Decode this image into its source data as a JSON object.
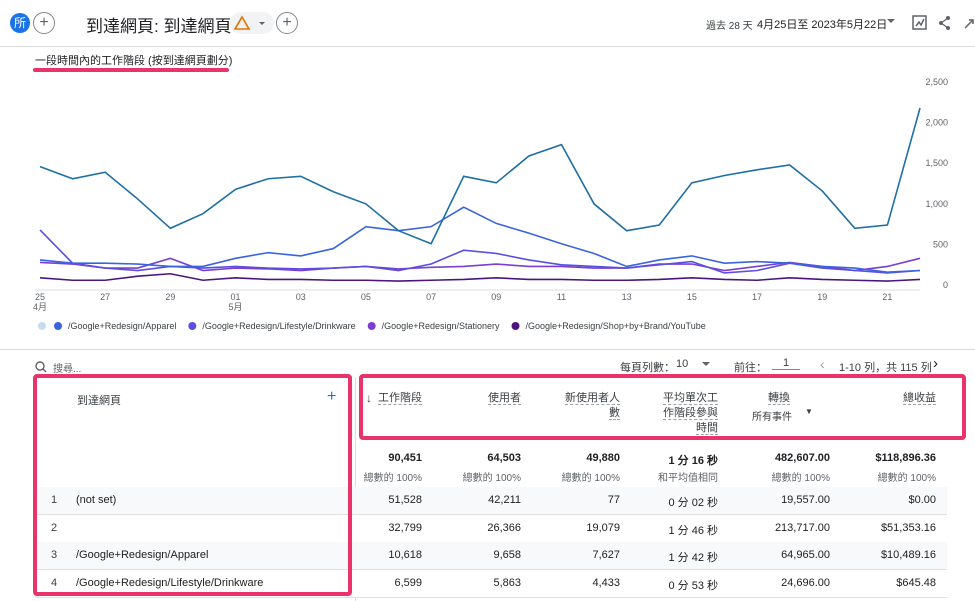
{
  "header": {
    "avatar": "所",
    "title": "到達網頁: 到達網頁",
    "date_range_label": "過去 28 天",
    "date_range": "4月25日至 2023年5月22日"
  },
  "chart": {
    "type": "line",
    "title": "一段時間內的工作階段 (按到達網頁劃分)",
    "categories": [
      "25",
      null,
      "27",
      null,
      "29",
      null,
      "01",
      null,
      "03",
      null,
      "05",
      null,
      "07",
      null,
      "09",
      null,
      "11",
      null,
      "13",
      null,
      "15",
      null,
      "17",
      null,
      "19",
      null,
      "21",
      null
    ],
    "month_labels": [
      "4月",
      null,
      null,
      null,
      null,
      null,
      "5月",
      null,
      null,
      null,
      null,
      null,
      null,
      null,
      null,
      null,
      null,
      null,
      null,
      null,
      null,
      null,
      null,
      null,
      null,
      null,
      null,
      null
    ],
    "ylim": [
      0,
      2500
    ],
    "yticks": [
      0,
      500,
      {
        "value": 1000,
        "label": "1,000"
      },
      {
        "value": 1500,
        "label": "1,500"
      },
      {
        "value": 2000,
        "label": "2,000"
      },
      {
        "value": 2500,
        "label": "2,500"
      }
    ],
    "grid": false,
    "series": [
      {
        "name": null,
        "color": "#1d6fa5",
        "values": [
          1520,
          1370,
          1450,
          1120,
          760,
          940,
          1240,
          1370,
          1400,
          1210,
          1060,
          730,
          570,
          1400,
          1320,
          1650,
          1790,
          1060,
          730,
          800,
          1320,
          1410,
          1480,
          1540,
          1220,
          760,
          800,
          2240
        ]
      },
      {
        "name": "/Google+Redesign/Apparel",
        "color": "#3a63e0",
        "values": [
          370,
          330,
          330,
          320,
          290,
          290,
          390,
          460,
          420,
          510,
          780,
          730,
          780,
          1020,
          820,
          700,
          570,
          450,
          290,
          370,
          420,
          330,
          350,
          330,
          290,
          270,
          220,
          240
        ]
      },
      {
        "name": "/Google+Redesign/Lifestyle/Drinkware",
        "color": "#5b4fe0",
        "values": [
          740,
          330,
          270,
          240,
          290,
          270,
          290,
          270,
          260,
          270,
          290,
          240,
          320,
          490,
          450,
          370,
          310,
          290,
          270,
          310,
          350,
          210,
          240,
          330,
          270,
          240,
          210,
          240
        ]
      },
      {
        "name": "/Google+Redesign/Stationery",
        "color": "#7b3fcf",
        "values": [
          340,
          320,
          270,
          270,
          390,
          240,
          270,
          260,
          240,
          270,
          290,
          260,
          280,
          290,
          320,
          290,
          290,
          270,
          270,
          320,
          320,
          240,
          290,
          340,
          290,
          240,
          290,
          390
        ]
      },
      {
        "name": "/Google+Redesign/Shop+by+Brand/YouTube",
        "color": "#4b1580",
        "values": [
          150,
          120,
          120,
          170,
          200,
          120,
          150,
          130,
          130,
          120,
          120,
          110,
          120,
          130,
          150,
          130,
          130,
          120,
          120,
          130,
          150,
          130,
          120,
          150,
          130,
          120,
          110,
          130
        ]
      }
    ]
  },
  "toolbar": {
    "search": "搜尋...",
    "rows_per_page_label": "每頁列數：",
    "rows_per_page": "10",
    "goto_label": "前往：",
    "goto": "1",
    "pagination": "1-10 列，共 115 列"
  },
  "table": {
    "dimension_header": "到達網頁",
    "sort_indicator": "↓",
    "columns": [
      "工作階段",
      "使用者",
      "新使用者人數",
      "平均單次工作階段參與時間",
      "轉換",
      "總收益"
    ],
    "conversion_filter": "所有事件",
    "totals": [
      "90,451",
      "64,503",
      "49,880",
      "1 分 16 秒",
      "482,607.00",
      "$118,896.36"
    ],
    "totals_notes": [
      "總數的 100%",
      "總數的 100%",
      "總數的 100%",
      "和平均值相同",
      "總數的 100%",
      "總數的 100%"
    ],
    "rows": [
      {
        "index": 1,
        "page": "(not set)",
        "cells": [
          "51,528",
          "42,211",
          "77",
          "0 分 02 秒",
          "19,557.00",
          "$0.00"
        ]
      },
      {
        "index": 2,
        "page": null,
        "cells": [
          "32,799",
          "26,366",
          "19,079",
          "1 分 46 秒",
          "213,717.00",
          "$51,353.16"
        ]
      },
      {
        "index": 3,
        "page": "/Google+Redesign/Apparel",
        "cells": [
          "10,618",
          "9,658",
          "7,627",
          "1 分 42 秒",
          "64,965.00",
          "$10,489.16"
        ]
      },
      {
        "index": 4,
        "page": "/Google+Redesign/Lifestyle/Drinkware",
        "cells": [
          "6,599",
          "5,863",
          "4,433",
          "0 分 53 秒",
          "24,696.00",
          "$645.48"
        ]
      }
    ]
  }
}
